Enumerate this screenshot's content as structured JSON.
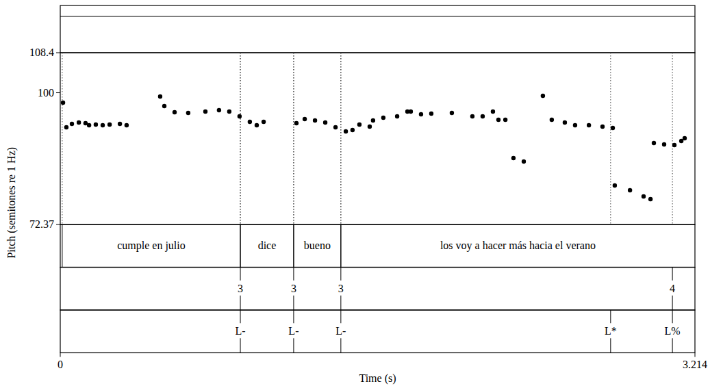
{
  "chart_data": {
    "type": "scatter",
    "x_label": "Time (s)",
    "y_label": "Pitch (semitones re 1 Hz)",
    "xlim": [
      0,
      3.214
    ],
    "xticks": [
      0,
      3.214
    ],
    "ylim": [
      72.37,
      108.4
    ],
    "yticks": [
      72.37,
      100,
      108.4
    ],
    "color": "#000000",
    "marker": "circle",
    "x": [
      0.014,
      0.031,
      0.059,
      0.094,
      0.128,
      0.146,
      0.18,
      0.215,
      0.25,
      0.302,
      0.336,
      0.506,
      0.527,
      0.579,
      0.648,
      0.735,
      0.804,
      0.856,
      0.908,
      0.96,
      0.995,
      1.03,
      1.196,
      1.238,
      1.29,
      1.342,
      1.394,
      1.446,
      1.48,
      1.515,
      1.567,
      1.584,
      1.636,
      1.706,
      1.758,
      1.775,
      1.827,
      1.879,
      1.983,
      2.087,
      2.139,
      2.191,
      2.219,
      2.254,
      2.295,
      2.347,
      2.444,
      2.489,
      2.555,
      2.607,
      2.677,
      2.746,
      2.798,
      2.808,
      2.885,
      2.954,
      2.989,
      3.006,
      3.058,
      3.11,
      3.145,
      3.162
    ],
    "y": [
      97.92,
      92.75,
      93.47,
      93.76,
      93.61,
      93.18,
      93.33,
      93.18,
      93.33,
      93.47,
      93.18,
      99.21,
      97.2,
      95.91,
      95.77,
      96.05,
      96.34,
      96.05,
      95.05,
      93.9,
      93.18,
      93.9,
      93.61,
      94.48,
      94.19,
      93.76,
      92.75,
      91.89,
      92.18,
      93.33,
      92.9,
      94.19,
      94.76,
      95.05,
      96.05,
      96.05,
      95.48,
      95.62,
      95.77,
      95.05,
      95.05,
      96.05,
      94.33,
      94.33,
      86.29,
      85.58,
      99.36,
      94.33,
      93.76,
      93.18,
      93.18,
      92.9,
      92.61,
      80.55,
      79.55,
      78.25,
      77.68,
      89.45,
      89.16,
      89.02,
      89.88,
      90.46
    ],
    "tiers": [
      {
        "intervals": [
          {
            "start": 0.01,
            "end": 0.912,
            "text": "cumple en julio"
          },
          {
            "start": 0.912,
            "end": 1.182,
            "text": "dice"
          },
          {
            "start": 1.182,
            "end": 1.421,
            "text": "bueno"
          },
          {
            "start": 1.421,
            "end": 3.214,
            "text": "los voy a hacer más hacia el verano"
          }
        ]
      },
      {
        "points": [
          {
            "time": 0.912,
            "text": "3"
          },
          {
            "time": 1.182,
            "text": "3"
          },
          {
            "time": 1.421,
            "text": "3"
          },
          {
            "time": 3.1,
            "text": "4"
          }
        ]
      },
      {
        "points": [
          {
            "time": 0.912,
            "text": "L-"
          },
          {
            "time": 1.182,
            "text": "L-"
          },
          {
            "time": 1.421,
            "text": "L-"
          },
          {
            "time": 2.787,
            "text": "L*"
          },
          {
            "time": 3.1,
            "text": "L%"
          }
        ]
      }
    ]
  }
}
